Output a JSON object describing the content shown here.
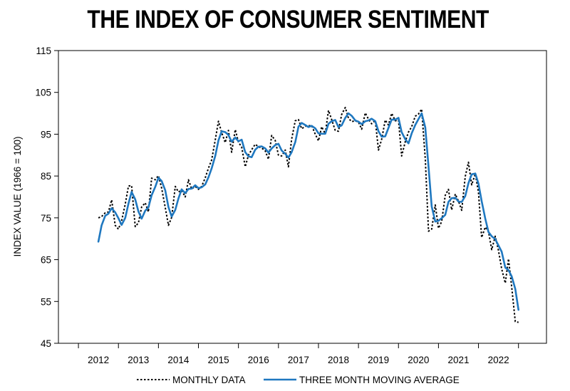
{
  "chart_data": {
    "type": "line",
    "title": "THE INDEX OF CONSUMER SENTIMENT",
    "ylabel": "INDEX VALUE (1966 = 100)",
    "xlabel": "",
    "ylim": [
      45,
      115
    ],
    "xlim": [
      2011.0,
      2023.2
    ],
    "y_ticks": [
      45,
      55,
      65,
      75,
      85,
      95,
      105,
      115
    ],
    "x_ticks": [
      2012,
      2013,
      2014,
      2015,
      2016,
      2017,
      2018,
      2019,
      2020,
      2021,
      2022
    ],
    "grid": false,
    "legend_position": "bottom",
    "series": [
      {
        "name": "MONTHLY DATA",
        "color": "#000000",
        "style": "dotted",
        "x": [
          2012.0,
          2012.08,
          2012.17,
          2012.25,
          2012.33,
          2012.42,
          2012.5,
          2012.58,
          2012.67,
          2012.75,
          2012.83,
          2012.92,
          2013.0,
          2013.08,
          2013.17,
          2013.25,
          2013.33,
          2013.42,
          2013.5,
          2013.58,
          2013.67,
          2013.75,
          2013.83,
          2013.92,
          2014.0,
          2014.08,
          2014.17,
          2014.25,
          2014.33,
          2014.42,
          2014.5,
          2014.58,
          2014.67,
          2014.75,
          2014.83,
          2014.92,
          2015.0,
          2015.08,
          2015.17,
          2015.25,
          2015.33,
          2015.42,
          2015.5,
          2015.58,
          2015.67,
          2015.75,
          2015.83,
          2015.92,
          2016.0,
          2016.08,
          2016.17,
          2016.25,
          2016.33,
          2016.42,
          2016.5,
          2016.58,
          2016.67,
          2016.75,
          2016.83,
          2016.92,
          2017.0,
          2017.08,
          2017.17,
          2017.25,
          2017.33,
          2017.42,
          2017.5,
          2017.58,
          2017.67,
          2017.75,
          2017.83,
          2017.92,
          2018.0,
          2018.08,
          2018.17,
          2018.25,
          2018.33,
          2018.42,
          2018.5,
          2018.58,
          2018.67,
          2018.75,
          2018.83,
          2018.92,
          2019.0,
          2019.08,
          2019.17,
          2019.25,
          2019.33,
          2019.42,
          2019.5,
          2019.58,
          2019.67,
          2019.75,
          2019.83,
          2019.92,
          2020.0,
          2020.08,
          2020.17,
          2020.25,
          2020.33,
          2020.42,
          2020.5,
          2020.58,
          2020.67,
          2020.75,
          2020.83,
          2020.92,
          2021.0,
          2021.08,
          2021.17,
          2021.25,
          2021.33,
          2021.42,
          2021.5,
          2021.58,
          2021.67,
          2021.75,
          2021.83,
          2021.92,
          2022.0,
          2022.08,
          2022.17,
          2022.25,
          2022.33,
          2022.42,
          2022.5
        ],
        "y": [
          75.0,
          75.3,
          76.2,
          76.4,
          79.3,
          73.2,
          72.3,
          74.3,
          78.3,
          82.6,
          82.7,
          72.9,
          73.8,
          77.6,
          78.6,
          76.4,
          84.5,
          84.1,
          85.1,
          82.1,
          77.5,
          73.2,
          75.1,
          82.5,
          81.2,
          81.6,
          80.0,
          84.1,
          81.9,
          82.5,
          81.8,
          82.5,
          84.6,
          86.9,
          88.8,
          93.6,
          98.1,
          95.4,
          93.0,
          95.9,
          90.7,
          96.1,
          93.1,
          91.9,
          87.2,
          90.0,
          91.3,
          92.6,
          92.0,
          91.7,
          91.0,
          89.0,
          94.7,
          93.5,
          90.0,
          89.8,
          91.2,
          87.2,
          93.8,
          98.2,
          98.5,
          96.3,
          96.9,
          97.0,
          97.1,
          95.0,
          93.4,
          96.8,
          95.1,
          100.7,
          98.5,
          95.9,
          95.7,
          99.7,
          101.4,
          98.8,
          98.0,
          98.2,
          97.9,
          96.2,
          100.1,
          98.6,
          97.5,
          98.3,
          91.2,
          93.8,
          98.4,
          97.2,
          100.0,
          98.2,
          98.4,
          89.8,
          93.2,
          95.5,
          96.8,
          99.3,
          99.8,
          101.0,
          89.1,
          71.8,
          72.3,
          78.1,
          72.5,
          74.1,
          80.4,
          81.8,
          76.9,
          80.7,
          79.0,
          76.8,
          84.9,
          88.3,
          82.9,
          85.5,
          81.2,
          70.3,
          72.8,
          71.7,
          67.4,
          70.6,
          67.2,
          62.8,
          59.4,
          65.2,
          58.4,
          50.2,
          50.0
        ]
      },
      {
        "name": "THREE MONTH MOVING AVERAGE",
        "color": "#1f78c0",
        "style": "solid",
        "x": [
          2012.0,
          2012.08,
          2012.17,
          2012.25,
          2012.33,
          2012.42,
          2012.5,
          2012.58,
          2012.67,
          2012.75,
          2012.83,
          2012.92,
          2013.0,
          2013.08,
          2013.17,
          2013.25,
          2013.33,
          2013.42,
          2013.5,
          2013.58,
          2013.67,
          2013.75,
          2013.83,
          2013.92,
          2014.0,
          2014.08,
          2014.17,
          2014.25,
          2014.33,
          2014.42,
          2014.5,
          2014.58,
          2014.67,
          2014.75,
          2014.83,
          2014.92,
          2015.0,
          2015.08,
          2015.17,
          2015.25,
          2015.33,
          2015.42,
          2015.5,
          2015.58,
          2015.67,
          2015.75,
          2015.83,
          2015.92,
          2016.0,
          2016.08,
          2016.17,
          2016.25,
          2016.33,
          2016.42,
          2016.5,
          2016.58,
          2016.67,
          2016.75,
          2016.83,
          2016.92,
          2017.0,
          2017.08,
          2017.17,
          2017.25,
          2017.33,
          2017.42,
          2017.5,
          2017.58,
          2017.67,
          2017.75,
          2017.83,
          2017.92,
          2018.0,
          2018.08,
          2018.17,
          2018.25,
          2018.33,
          2018.42,
          2018.5,
          2018.58,
          2018.67,
          2018.75,
          2018.83,
          2018.92,
          2019.0,
          2019.08,
          2019.17,
          2019.25,
          2019.33,
          2019.42,
          2019.5,
          2019.58,
          2019.67,
          2019.75,
          2019.83,
          2019.92,
          2020.0,
          2020.08,
          2020.17,
          2020.25,
          2020.33,
          2020.42,
          2020.5,
          2020.58,
          2020.67,
          2020.75,
          2020.83,
          2020.92,
          2021.0,
          2021.08,
          2021.17,
          2021.25,
          2021.33,
          2021.42,
          2021.5,
          2021.58,
          2021.67,
          2021.75,
          2021.83,
          2021.92,
          2022.0,
          2022.08,
          2022.17,
          2022.25,
          2022.33,
          2022.42,
          2022.5
        ],
        "y": [
          69.3,
          73.2,
          75.5,
          76.0,
          77.3,
          76.3,
          74.9,
          73.3,
          75.0,
          78.4,
          81.2,
          79.4,
          76.5,
          74.8,
          76.7,
          77.5,
          80.4,
          82.4,
          84.6,
          83.8,
          81.6,
          77.6,
          75.3,
          76.9,
          79.6,
          81.8,
          80.9,
          81.9,
          82.0,
          82.8,
          82.1,
          82.3,
          83.0,
          84.7,
          86.8,
          89.8,
          93.5,
          95.7,
          95.5,
          94.8,
          93.2,
          94.2,
          93.3,
          93.7,
          90.7,
          89.7,
          89.5,
          91.3,
          92.0,
          92.1,
          91.6,
          90.6,
          91.6,
          92.4,
          92.7,
          91.1,
          90.3,
          89.4,
          90.7,
          93.1,
          96.8,
          97.7,
          97.2,
          96.7,
          97.0,
          96.4,
          95.2,
          95.1,
          95.1,
          97.5,
          98.1,
          98.4,
          96.7,
          97.1,
          98.9,
          100.0,
          99.4,
          98.3,
          98.0,
          97.4,
          98.1,
          98.3,
          98.7,
          98.1,
          95.7,
          94.4,
          94.5,
          96.5,
          98.5,
          98.5,
          98.9,
          95.5,
          93.8,
          92.8,
          95.2,
          97.2,
          98.6,
          100.0,
          96.6,
          87.3,
          77.7,
          74.1,
          74.3,
          74.9,
          75.7,
          78.8,
          79.7,
          79.8,
          78.9,
          78.8,
          80.2,
          83.3,
          85.4,
          85.6,
          83.2,
          79.0,
          74.8,
          71.6,
          70.6,
          69.9,
          68.4,
          66.9,
          63.1,
          62.5,
          61.0,
          58.0,
          53.0
        ]
      }
    ]
  }
}
